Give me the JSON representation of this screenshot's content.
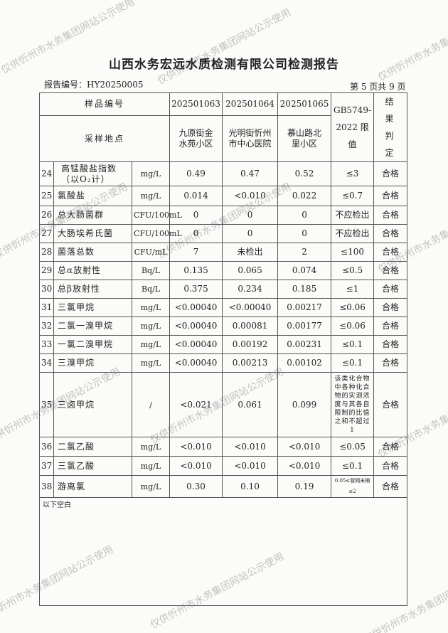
{
  "title": "山西水务宏远水质检测有限公司检测报告",
  "report_no": "报告编号：HY20250005",
  "page_no": "第 5 页共 9 页",
  "header": {
    "sample_no_label": "样品编号",
    "location_label": "采样地点",
    "samples": [
      "202501063",
      "202501064",
      "202501065"
    ],
    "locations": [
      "九原街金水苑小区",
      "光明街忻州市中心医院",
      "慕山路北里小区"
    ],
    "standard_label": "GB5749-2022 限值",
    "result_label": "结果判定"
  },
  "rows": [
    {
      "no": "24",
      "name": "高锰酸盐指数（以O₂计）",
      "unit": "mg/L",
      "v1": "0.49",
      "v2": "0.47",
      "v3": "0.52",
      "limit": "≤3",
      "result": "合格"
    },
    {
      "no": "25",
      "name": "氯酸盐",
      "unit": "mg/L",
      "v1": "0.014",
      "v2": "<0.010",
      "v3": "0.022",
      "limit": "≤0.7",
      "result": "合格"
    },
    {
      "no": "26",
      "name": "总大肠菌群",
      "unit": "CFU/100mL",
      "v1": "0",
      "v2": "0",
      "v3": "0",
      "limit": "不应检出",
      "result": "合格"
    },
    {
      "no": "27",
      "name": "大肠埃希氏菌",
      "unit": "CFU/100mL",
      "v1": "0",
      "v2": "0",
      "v3": "0",
      "limit": "不应检出",
      "result": "合格"
    },
    {
      "no": "28",
      "name": "菌落总数",
      "unit": "CFU/mL",
      "v1": "7",
      "v2": "未检出",
      "v3": "2",
      "limit": "≤100",
      "result": "合格"
    },
    {
      "no": "29",
      "name": "总α放射性",
      "unit": "Bq/L",
      "v1": "0.135",
      "v2": "0.065",
      "v3": "0.074",
      "limit": "≤0.5",
      "result": "合格"
    },
    {
      "no": "30",
      "name": "总β放射性",
      "unit": "Bq/L",
      "v1": "0.375",
      "v2": "0.234",
      "v3": "0.185",
      "limit": "≤1",
      "result": "合格"
    },
    {
      "no": "31",
      "name": "三氯甲烷",
      "unit": "mg/L",
      "v1": "<0.00040",
      "v2": "<0.00040",
      "v3": "0.00217",
      "limit": "≤0.06",
      "result": "合格"
    },
    {
      "no": "32",
      "name": "二氯一溴甲烷",
      "unit": "mg/L",
      "v1": "<0.00040",
      "v2": "0.00081",
      "v3": "0.00177",
      "limit": "≤0.06",
      "result": "合格"
    },
    {
      "no": "33",
      "name": "一氯二溴甲烷",
      "unit": "mg/L",
      "v1": "<0.00040",
      "v2": "0.00192",
      "v3": "0.00231",
      "limit": "≤0.1",
      "result": "合格"
    },
    {
      "no": "34",
      "name": "三溴甲烷",
      "unit": "mg/L",
      "v1": "<0.00040",
      "v2": "0.00213",
      "v3": "0.00102",
      "limit": "≤0.1",
      "result": "合格"
    },
    {
      "no": "35",
      "name": "三卤甲烷",
      "unit": "/",
      "v1": "<0.021",
      "v2": "0.061",
      "v3": "0.099",
      "limit": "该类化合物中各种化合物的实测浓度与其各自限制的比值之和不超过1",
      "result": "合格"
    },
    {
      "no": "36",
      "name": "二氯乙酸",
      "unit": "mg/L",
      "v1": "<0.010",
      "v2": "<0.010",
      "v3": "<0.010",
      "limit": "≤0.05",
      "result": "合格"
    },
    {
      "no": "37",
      "name": "三氯乙酸",
      "unit": "mg/L",
      "v1": "<0.010",
      "v2": "<0.010",
      "v3": "<0.010",
      "limit": "≤0.1",
      "result": "合格"
    },
    {
      "no": "38",
      "name": "游离氯",
      "unit": "mg/L",
      "v1": "0.30",
      "v2": "0.10",
      "v3": "0.19",
      "limit": "0.05≤管网末梢≤2",
      "result": "合格"
    }
  ],
  "blank_note": "以下空白",
  "watermark": "仅供忻州市水务集团网站公示使用"
}
